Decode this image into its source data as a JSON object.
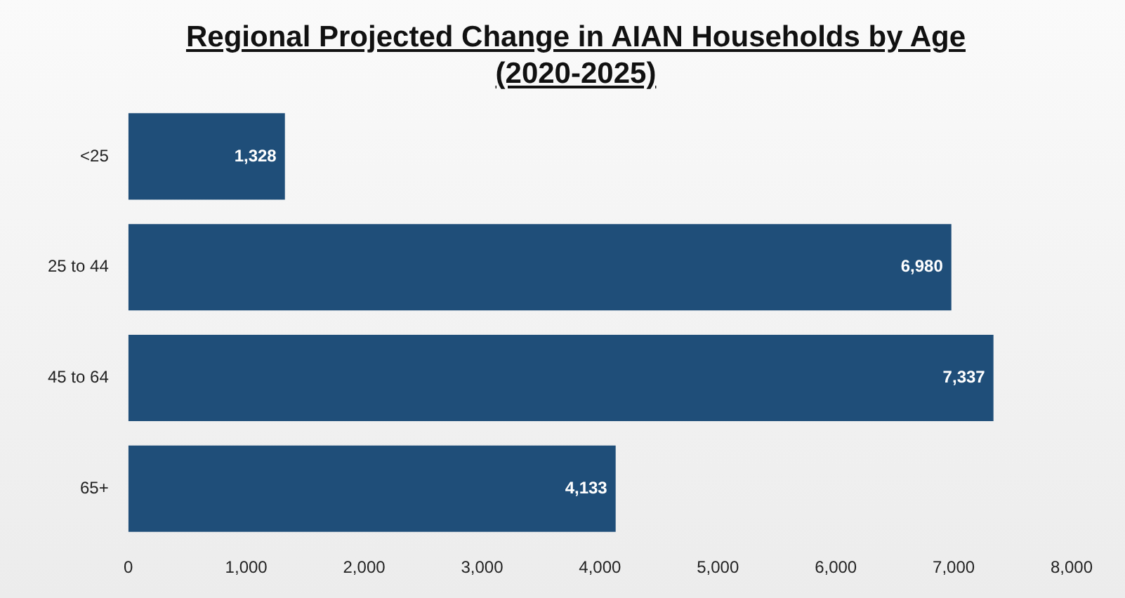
{
  "chart_data": {
    "type": "bar",
    "orientation": "horizontal",
    "title": "Regional Projected Change in AIAN Households by Age (2020-2025)",
    "categories": [
      "<25",
      "25 to 44",
      "45 to 64",
      "65+"
    ],
    "values": [
      1328,
      6980,
      7337,
      4133
    ],
    "value_labels": [
      "1,328",
      "6,980",
      "7,337",
      "4,133"
    ],
    "color": "#1f4e79",
    "xlim": [
      0,
      8000
    ],
    "xticks": [
      0,
      {
        "value": 1000,
        "label": "1,000"
      },
      {
        "value": 2000,
        "label": "2,000"
      },
      {
        "value": 3000,
        "label": "3,000"
      },
      {
        "value": 4000,
        "label": "4,000"
      },
      {
        "value": 5000,
        "label": "5,000"
      },
      {
        "value": 6000,
        "label": "6,000"
      },
      {
        "value": 7000,
        "label": "7,000"
      },
      {
        "value": 8000,
        "label": "8,000"
      }
    ],
    "grid": false,
    "legend": false
  }
}
